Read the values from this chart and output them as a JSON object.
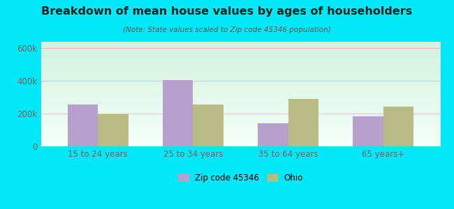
{
  "title": "Breakdown of mean house values by ages of householders",
  "subtitle": "(Note: State values scaled to Zip code 45346 population)",
  "categories": [
    "15 to 24 years",
    "25 to 34 years",
    "35 to 64 years",
    "65 years+"
  ],
  "zip_values": [
    255000,
    405000,
    140000,
    182000
  ],
  "ohio_values": [
    195000,
    255000,
    290000,
    242000
  ],
  "zip_color": "#b8a0cc",
  "ohio_color": "#b8bc84",
  "background_outer": "#00e8f8",
  "ylim": [
    0,
    640000
  ],
  "yticks": [
    0,
    200000,
    400000,
    600000
  ],
  "ytick_labels": [
    "0",
    "200k",
    "400k",
    "600k"
  ],
  "legend_zip": "Zip code 45346",
  "legend_ohio": "Ohio",
  "bar_width": 0.32,
  "grid_color": "#dddddd",
  "tick_color": "#666666",
  "title_color": "#222222",
  "subtitle_color": "#555555"
}
